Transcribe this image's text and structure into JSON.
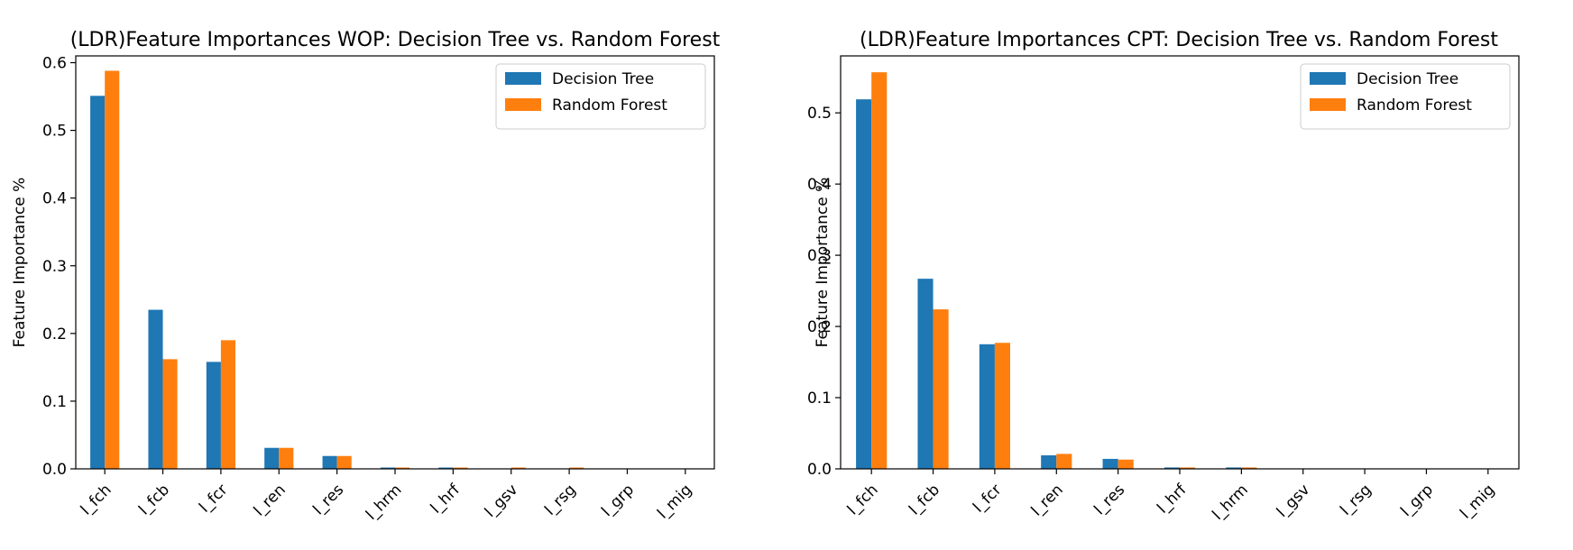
{
  "colors": {
    "decision_tree": "#1f77b4",
    "random_forest": "#ff7f0e",
    "axis": "#000000",
    "legend_border": "#cccccc"
  },
  "chart_data": [
    {
      "type": "bar",
      "title": "(LDR)Feature Importances WOP: Decision Tree vs. Random Forest",
      "xlabel": "",
      "ylabel": "Feature Importance %",
      "ylim": [
        0,
        0.61
      ],
      "yticks": [
        0.0,
        0.1,
        0.2,
        0.3,
        0.4,
        0.5,
        0.6
      ],
      "ytick_labels": [
        "0.0",
        "0.1",
        "0.2",
        "0.3",
        "0.4",
        "0.5",
        "0.6"
      ],
      "categories": [
        "l_fch",
        "l_fcb",
        "l_fcr",
        "l_ren",
        "l_res",
        "l_hrm",
        "l_hrf",
        "l_gsv",
        "l_rsg",
        "l_grp",
        "l_mig"
      ],
      "series": [
        {
          "name": "Decision Tree",
          "color": "#1f77b4",
          "values": [
            0.551,
            0.235,
            0.158,
            0.031,
            0.019,
            0.002,
            0.002,
            0.0,
            0.0,
            0.0,
            0.0
          ]
        },
        {
          "name": "Random Forest",
          "color": "#ff7f0e",
          "values": [
            0.588,
            0.162,
            0.19,
            0.031,
            0.019,
            0.002,
            0.002,
            0.002,
            0.002,
            0.0,
            0.0
          ]
        }
      ],
      "legend": "top-right",
      "grid": false
    },
    {
      "type": "bar",
      "title": "(LDR)Feature Importances CPT: Decision Tree vs. Random Forest",
      "xlabel": "",
      "ylabel": "Feature Importance %",
      "ylim": [
        0,
        0.58
      ],
      "yticks": [
        0.0,
        0.1,
        0.2,
        0.3,
        0.4,
        0.5
      ],
      "ytick_labels": [
        "0.0",
        "0.1",
        "0.2",
        "0.3",
        "0.4",
        "0.5"
      ],
      "categories": [
        "l_fch",
        "l_fcb",
        "l_fcr",
        "l_ren",
        "l_res",
        "l_hrf",
        "l_hrm",
        "l_gsv",
        "l_rsg",
        "l_grp",
        "l_mig"
      ],
      "series": [
        {
          "name": "Decision Tree",
          "color": "#1f77b4",
          "values": [
            0.519,
            0.267,
            0.175,
            0.019,
            0.014,
            0.002,
            0.002,
            0.0,
            0.0,
            0.0,
            0.0
          ]
        },
        {
          "name": "Random Forest",
          "color": "#ff7f0e",
          "values": [
            0.557,
            0.224,
            0.177,
            0.021,
            0.013,
            0.002,
            0.002,
            0.0,
            0.0,
            0.0,
            0.0
          ]
        }
      ],
      "legend": "top-right",
      "grid": false
    }
  ]
}
